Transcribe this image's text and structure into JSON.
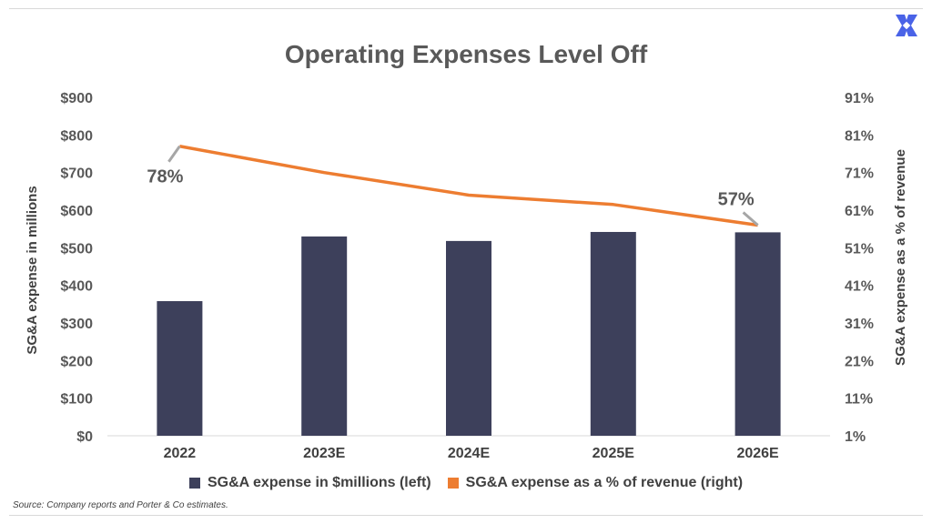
{
  "title": "Operating Expenses Level Off",
  "source": "Source: Company reports and Porter & Co estimates.",
  "colors": {
    "bar": "#3d405b",
    "line": "#ed7d31",
    "callout_line": "#a6a6a6"
  },
  "logo_icon": "x-cross-logo-icon",
  "chart_data": {
    "type": "bar",
    "categories": [
      "2022",
      "2023E",
      "2024E",
      "2025E",
      "2026E"
    ],
    "series": [
      {
        "name": "SG&A expense in $millions (left)",
        "type": "bar",
        "axis": "left",
        "values": [
          358,
          530,
          518,
          542,
          541
        ]
      },
      {
        "name": "SG&A expense as a % of revenue (right)",
        "type": "line",
        "axis": "right",
        "values": [
          78,
          71,
          65,
          62.5,
          57
        ]
      }
    ],
    "ylabel": "SG&A expense in millions",
    "y2label": "SG&A expense as a % of revenue",
    "ylim": [
      0,
      900
    ],
    "y2lim": [
      1,
      91
    ],
    "yticks": [
      "$0",
      "$100",
      "$200",
      "$300",
      "$400",
      "$500",
      "$600",
      "$700",
      "$800",
      "$900"
    ],
    "y2ticks": [
      "1%",
      "11%",
      "21%",
      "31%",
      "41%",
      "51%",
      "61%",
      "71%",
      "81%",
      "91%"
    ],
    "annotations": [
      {
        "text": "78%",
        "category": "2022"
      },
      {
        "text": "57%",
        "category": "2026E"
      }
    ],
    "legend": "bottom",
    "grid": false
  }
}
